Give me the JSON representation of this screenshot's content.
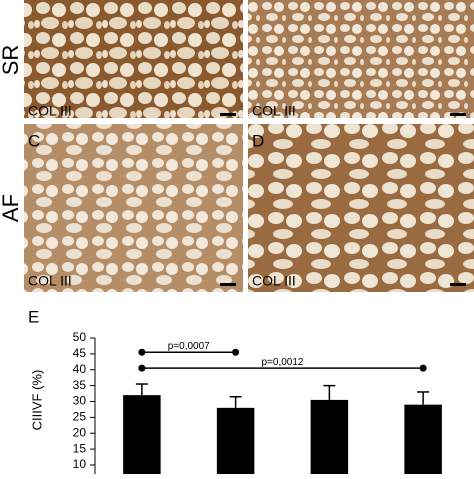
{
  "rows": [
    "SR",
    "AF"
  ],
  "panels": [
    {
      "letter": null,
      "caption": "COL III"
    },
    {
      "letter": null,
      "caption": "COL III"
    },
    {
      "letter": "C",
      "caption": "COL III"
    },
    {
      "letter": "D",
      "caption": "COL III"
    }
  ],
  "chart_data": {
    "type": "bar",
    "panel_letter": "E",
    "y_label": "CIIIVF (%)",
    "categories": [
      null,
      null,
      null,
      null
    ],
    "series": [
      {
        "color": "#000000",
        "values": [
          32,
          28,
          30.5,
          29
        ],
        "errors": [
          3.5,
          3.5,
          4.5,
          4
        ]
      }
    ],
    "ylim": [
      7,
      50
    ],
    "yticks": [
      10,
      15,
      20,
      25,
      30,
      35,
      40,
      45,
      50
    ],
    "annotations": [
      {
        "label": "p=0,0007",
        "y": 45.5
      },
      {
        "label": "p=0,0012",
        "y": 40.5
      }
    ]
  }
}
